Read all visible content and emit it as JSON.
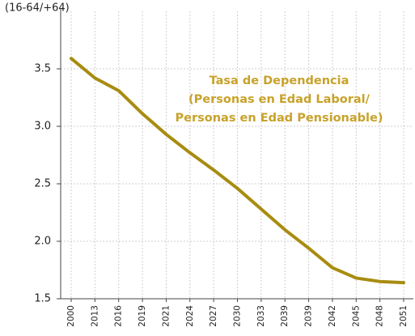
{
  "chart_data": {
    "type": "line",
    "y_axis_label": "(16-64/+64)",
    "annotation": [
      "Tasa de Dependencia",
      "(Personas en Edad Laboral/",
      "Personas en Edad Pensionable)"
    ],
    "categories": [
      "2000",
      "2013",
      "2016",
      "2019",
      "2021",
      "2024",
      "2027",
      "2030",
      "2033",
      "2039",
      "2039",
      "2042",
      "2045",
      "2048",
      "2051"
    ],
    "series": [
      {
        "name": "Tasa de Dependencia",
        "color": "#a88c10",
        "values": [
          3.59,
          3.42,
          3.31,
          3.11,
          2.93,
          2.77,
          2.62,
          2.46,
          2.28,
          2.1,
          1.94,
          1.77,
          1.68,
          1.65,
          1.64
        ]
      }
    ],
    "ylim": [
      1.5,
      4.0
    ],
    "yticks": [
      1.5,
      {
        "value": 2.0,
        "label": "2.0"
      },
      2.5,
      {
        "value": 3.0,
        "label": "3.0"
      },
      3.5
    ],
    "grid": true
  }
}
